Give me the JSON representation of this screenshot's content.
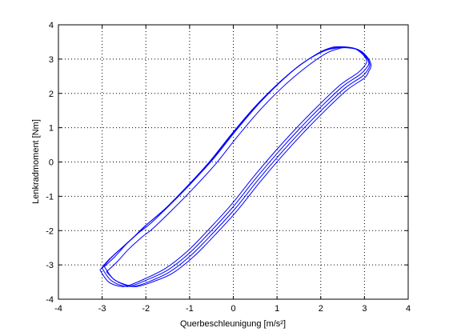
{
  "chart_data": {
    "type": "line",
    "xlabel": "Querbeschleunigung [m/s²]",
    "ylabel": "Lenkradmoment [Nm]",
    "xlim": [
      -4,
      4
    ],
    "ylim": [
      -4,
      4
    ],
    "xticks": [
      "-4",
      "-3",
      "-2",
      "-1",
      "0",
      "1",
      "2",
      "3",
      "4"
    ],
    "yticks": [
      "-4",
      "-3",
      "-2",
      "-1",
      "0",
      "1",
      "2",
      "3",
      "4"
    ],
    "grid": true,
    "line_color": "#0000ff",
    "series": [
      {
        "x": [
          -3.0,
          -2.8,
          -2.5,
          -2.2,
          -2.0,
          -1.5,
          -1.0,
          -0.5,
          0.0,
          0.5,
          1.0,
          1.5,
          2.0,
          2.3,
          2.5,
          2.8,
          3.0,
          3.1,
          3.05,
          2.9,
          2.5,
          2.0,
          1.5,
          1.0,
          0.5,
          0.0,
          -0.5,
          -1.0,
          -1.5,
          -2.0,
          -2.3,
          -2.5,
          -2.8,
          -3.0
        ],
        "y": [
          -3.1,
          -2.8,
          -2.45,
          -2.1,
          -1.85,
          -1.3,
          -0.65,
          0.05,
          0.85,
          1.6,
          2.25,
          2.8,
          3.2,
          3.33,
          3.35,
          3.3,
          3.1,
          2.9,
          2.75,
          2.55,
          2.2,
          1.6,
          0.95,
          0.25,
          -0.5,
          -1.3,
          -2.0,
          -2.65,
          -3.15,
          -3.45,
          -3.6,
          -3.62,
          -3.45,
          -3.1
        ]
      },
      {
        "x": [
          -2.95,
          -2.7,
          -2.45,
          -2.15,
          -1.9,
          -1.45,
          -0.95,
          -0.45,
          0.05,
          0.55,
          1.05,
          1.55,
          2.05,
          2.35,
          2.55,
          2.85,
          3.05,
          3.12,
          3.08,
          2.95,
          2.55,
          2.05,
          1.55,
          1.05,
          0.55,
          0.05,
          -0.45,
          -0.95,
          -1.45,
          -1.95,
          -2.25,
          -2.45,
          -2.75,
          -2.95
        ],
        "y": [
          -3.05,
          -2.75,
          -2.4,
          -2.05,
          -1.8,
          -1.25,
          -0.6,
          0.1,
          0.9,
          1.65,
          2.3,
          2.85,
          3.22,
          3.32,
          3.34,
          3.28,
          3.05,
          2.85,
          2.7,
          2.5,
          2.15,
          1.55,
          0.9,
          0.2,
          -0.55,
          -1.35,
          -2.05,
          -2.7,
          -3.2,
          -3.5,
          -3.62,
          -3.6,
          -3.4,
          -3.05
        ]
      },
      {
        "x": [
          -3.05,
          -2.85,
          -2.55,
          -2.25,
          -2.05,
          -1.55,
          -1.05,
          -0.55,
          -0.05,
          0.45,
          0.95,
          1.45,
          1.95,
          2.25,
          2.5,
          2.75,
          2.95,
          3.05,
          3.0,
          2.85,
          2.45,
          1.95,
          1.45,
          0.95,
          0.45,
          -0.05,
          -0.55,
          -1.05,
          -1.55,
          -2.05,
          -2.35,
          -2.55,
          -2.85,
          -3.05
        ],
        "y": [
          -3.15,
          -2.85,
          -2.5,
          -2.15,
          -1.9,
          -1.35,
          -0.7,
          0.0,
          0.8,
          1.55,
          2.2,
          2.75,
          3.18,
          3.34,
          3.36,
          3.32,
          3.15,
          2.95,
          2.8,
          2.6,
          2.25,
          1.65,
          1.0,
          0.3,
          -0.45,
          -1.25,
          -1.95,
          -2.6,
          -3.1,
          -3.42,
          -3.58,
          -3.63,
          -3.5,
          -3.15
        ]
      },
      {
        "x": [
          -2.9,
          -2.65,
          -2.4,
          -2.1,
          -1.85,
          -1.4,
          -0.9,
          -0.4,
          0.1,
          0.6,
          1.1,
          1.6,
          2.1,
          2.4,
          2.6,
          2.9,
          3.1,
          3.15,
          3.1,
          3.0,
          2.6,
          2.1,
          1.6,
          1.1,
          0.6,
          0.1,
          -0.4,
          -0.9,
          -1.4,
          -1.9,
          -2.2,
          -2.4,
          -2.7,
          -2.9
        ],
        "y": [
          -3.2,
          -2.9,
          -2.55,
          -2.2,
          -1.95,
          -1.4,
          -0.75,
          -0.05,
          0.75,
          1.5,
          2.15,
          2.7,
          3.15,
          3.3,
          3.33,
          3.25,
          3.0,
          2.8,
          2.65,
          2.45,
          2.1,
          1.5,
          0.85,
          0.15,
          -0.6,
          -1.4,
          -2.1,
          -2.75,
          -3.25,
          -3.52,
          -3.63,
          -3.6,
          -3.45,
          -3.2
        ]
      }
    ]
  }
}
